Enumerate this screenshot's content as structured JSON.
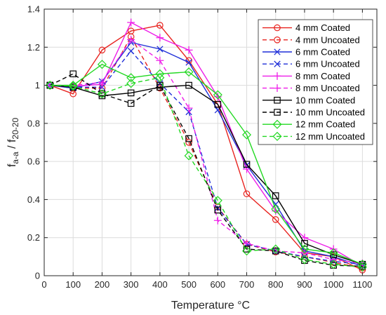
{
  "chart_data": {
    "type": "line",
    "xlabel": "Temperature °C",
    "ylabel_main": "f",
    "ylabel_sub1": "a-a",
    "ylabel_sep": " / f",
    "ylabel_sub2": "20-20",
    "xlim": [
      0,
      1150
    ],
    "ylim": [
      0,
      1.4
    ],
    "xticks": [
      0,
      100,
      200,
      300,
      400,
      500,
      600,
      700,
      800,
      900,
      1000,
      1100
    ],
    "yticks": [
      0,
      0.2,
      0.4,
      0.6,
      0.8,
      1,
      1.2,
      1.4
    ],
    "xtick_labels": [
      "0",
      "100",
      "200",
      "300",
      "400",
      "500",
      "600",
      "700",
      "800",
      "900",
      "1000",
      "1100"
    ],
    "ytick_labels": [
      "0",
      "0.2",
      "0.4",
      "0.6",
      "0.8",
      "1",
      "1.2",
      "1.4"
    ],
    "grid": true,
    "legend_position": "top-right",
    "x": [
      20,
      100,
      200,
      300,
      400,
      500,
      600,
      700,
      800,
      900,
      1000,
      1100
    ],
    "series": [
      {
        "name": "4 mm Coated",
        "color": "#e8231f",
        "dash": "solid",
        "marker": "circle",
        "values": [
          1.0,
          0.955,
          1.185,
          1.285,
          1.315,
          1.13,
          0.9,
          0.43,
          0.295,
          0.12,
          0.1,
          0.03
        ]
      },
      {
        "name": "4 mm Uncoated",
        "color": "#e8231f",
        "dash": "dashed",
        "marker": "circle",
        "values": [
          1.0,
          0.985,
          0.985,
          1.255,
          0.985,
          0.7,
          0.36,
          0.165,
          0.125,
          0.1,
          0.07,
          0.04
        ]
      },
      {
        "name": "6 mm Coated",
        "color": "#1f2fd8",
        "dash": "solid",
        "marker": "x",
        "values": [
          1.0,
          0.985,
          1.02,
          1.225,
          1.19,
          1.12,
          0.87,
          0.58,
          0.375,
          0.13,
          0.1,
          0.05
        ]
      },
      {
        "name": "6 mm Uncoated",
        "color": "#1f2fd8",
        "dash": "dashed",
        "marker": "x",
        "values": [
          1.0,
          0.99,
          0.99,
          1.18,
          1.01,
          0.86,
          0.355,
          0.165,
          0.13,
          0.1,
          0.075,
          0.06
        ]
      },
      {
        "name": "8 mm Coated",
        "color": "#ee1ee8",
        "dash": "solid",
        "marker": "plus",
        "values": [
          1.0,
          0.995,
          1.005,
          1.33,
          1.25,
          1.185,
          0.94,
          0.56,
          0.34,
          0.2,
          0.14,
          0.05
        ]
      },
      {
        "name": "8 mm Uncoated",
        "color": "#ee1ee8",
        "dash": "dashed",
        "marker": "plus",
        "values": [
          1.0,
          1.0,
          1.015,
          1.24,
          1.13,
          0.88,
          0.29,
          0.17,
          0.13,
          0.12,
          0.085,
          0.065
        ]
      },
      {
        "name": "10 mm Coated",
        "color": "#000000",
        "dash": "solid",
        "marker": "square",
        "values": [
          1.0,
          0.99,
          0.945,
          0.96,
          0.99,
          1.0,
          0.9,
          0.585,
          0.42,
          0.17,
          0.11,
          0.06
        ]
      },
      {
        "name": "10 mm Uncoated",
        "color": "#000000",
        "dash": "dashed",
        "marker": "square",
        "values": [
          1.0,
          1.06,
          0.955,
          0.905,
          1.0,
          0.72,
          0.345,
          0.14,
          0.13,
          0.08,
          0.055,
          0.05
        ]
      },
      {
        "name": "12 mm Coated",
        "color": "#22d822",
        "dash": "solid",
        "marker": "diamond",
        "values": [
          1.0,
          1.0,
          1.11,
          1.04,
          1.06,
          1.07,
          0.95,
          0.74,
          0.35,
          0.14,
          0.12,
          0.06
        ]
      },
      {
        "name": "12 mm Uncoated",
        "color": "#22d822",
        "dash": "dashed",
        "marker": "diamond",
        "values": [
          1.0,
          0.995,
          0.955,
          1.01,
          1.04,
          0.63,
          0.395,
          0.13,
          0.14,
          0.085,
          0.06,
          0.045
        ]
      }
    ]
  }
}
